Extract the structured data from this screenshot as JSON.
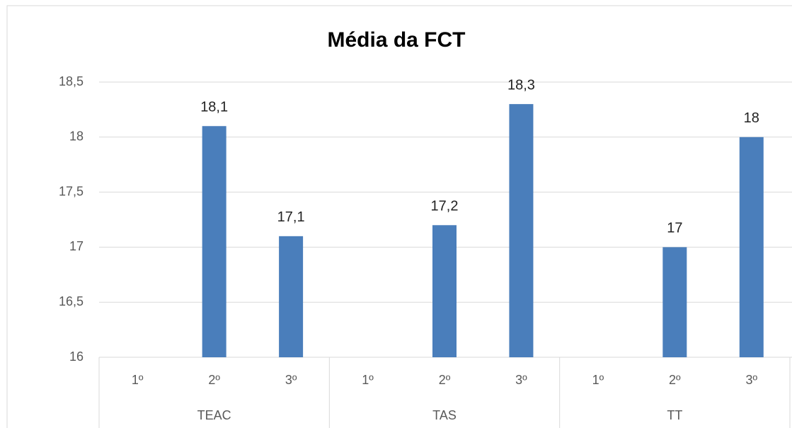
{
  "chart_data": {
    "type": "bar",
    "title": "Média da FCT",
    "categories": [
      "1º",
      "2º",
      "3º",
      "1º",
      "2º",
      "3º",
      "1º",
      "2º",
      "3º"
    ],
    "groups": [
      "TEAC",
      "TAS",
      "TT"
    ],
    "values": [
      null,
      18.1,
      17.1,
      null,
      17.2,
      18.3,
      null,
      17,
      18
    ],
    "value_labels": [
      null,
      "18,1",
      "17,1",
      null,
      "17,2",
      "18,3",
      null,
      "17",
      "18"
    ],
    "color": "#4a7ebb",
    "ylim": [
      16,
      18.5
    ],
    "yticks": [
      16,
      {
        "value": 16.5,
        "label": "16,5"
      },
      17,
      {
        "value": 17.5,
        "label": "17,5"
      },
      18,
      {
        "value": 18.5,
        "label": "18,5"
      }
    ],
    "grid": true
  }
}
